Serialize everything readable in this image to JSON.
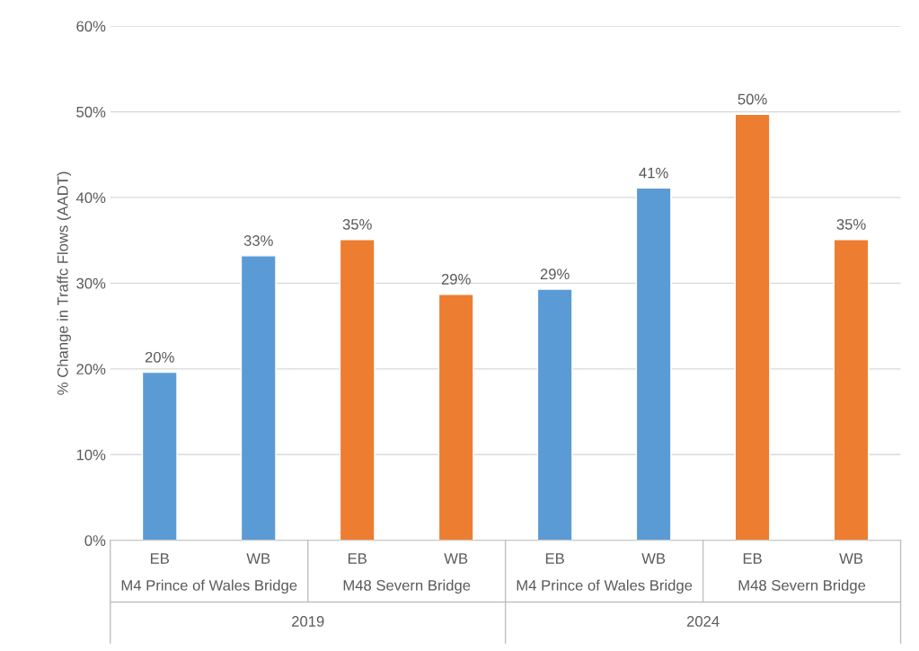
{
  "chart_data": {
    "type": "bar",
    "ylabel": "% Change in Traffc Flows (AADT)",
    "categories": [
      "EB",
      "WB",
      "EB",
      "WB",
      "EB",
      "WB",
      "EB",
      "WB"
    ],
    "values": [
      19.6,
      33.2,
      35.1,
      28.7,
      29.3,
      41.1,
      49.7,
      35.1
    ],
    "colors": [
      "#5b9bd5",
      "#5b9bd5",
      "#ed7d31",
      "#ed7d31",
      "#5b9bd5",
      "#5b9bd5",
      "#ed7d31",
      "#ed7d31"
    ],
    "value_labels": [
      "20%",
      "33%",
      "35%",
      "29%",
      "29%",
      "41%",
      "50%",
      "35%"
    ],
    "annotations": [
      "M4 Prince of Wales Bridge",
      "M48 Severn Bridge",
      "M4 Prince of Wales Bridge",
      "M48 Severn Bridge",
      "2019",
      "2024"
    ],
    "ylim": [
      0,
      60
    ],
    "yticks": [
      {
        "value": 0,
        "label": "0%"
      },
      {
        "value": 10,
        "label": "10%"
      },
      {
        "value": 20,
        "label": "20%"
      },
      {
        "value": 30,
        "label": "30%"
      },
      {
        "value": 40,
        "label": "40%"
      },
      {
        "value": 50,
        "label": "50%"
      },
      {
        "value": 60,
        "label": "60%"
      }
    ],
    "grid": "y"
  }
}
